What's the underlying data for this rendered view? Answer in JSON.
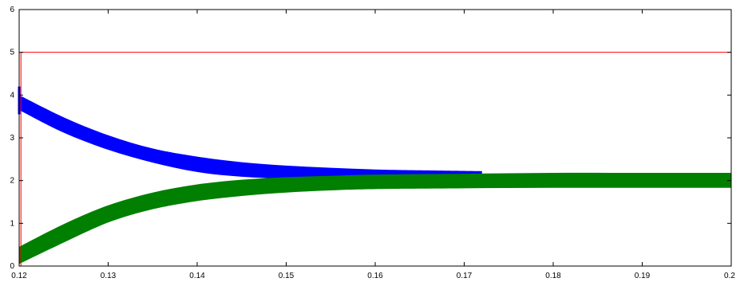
{
  "chart_data": {
    "type": "line",
    "title": "",
    "xlabel": "",
    "ylabel": "",
    "xlim": [
      0.12,
      0.2
    ],
    "ylim": [
      0,
      6
    ],
    "grid": false,
    "x_ticks": [
      0.12,
      0.13,
      0.14,
      0.15,
      0.16,
      0.17,
      0.18,
      0.19,
      0.2
    ],
    "x_tick_labels": [
      "0.12",
      "0.13",
      "0.14",
      "0.15",
      "0.16",
      "0.17",
      "0.18",
      "0.19",
      "0.2"
    ],
    "y_ticks": [
      0,
      1,
      2,
      3,
      4,
      5,
      6
    ],
    "y_tick_labels": [
      "0",
      "1",
      "2",
      "3",
      "4",
      "5",
      "6"
    ],
    "series": [
      {
        "color": "#ff0000",
        "style": "line",
        "x": [
          0.12,
          0.1202,
          0.1202,
          0.2
        ],
        "y": [
          0,
          0,
          5,
          5
        ]
      },
      {
        "color": "#0000ff",
        "style": "band",
        "x": [
          0.12,
          0.125,
          0.13,
          0.135,
          0.14,
          0.145,
          0.15,
          0.155,
          0.16,
          0.165,
          0.172
        ],
        "y_upper": [
          4.0,
          3.48,
          3.06,
          2.75,
          2.56,
          2.43,
          2.35,
          2.3,
          2.26,
          2.24,
          2.22
        ],
        "y_lower": [
          3.65,
          3.12,
          2.72,
          2.42,
          2.2,
          2.09,
          2.05,
          2.05,
          2.07,
          2.1,
          2.15
        ]
      },
      {
        "color": "#007f00",
        "style": "band",
        "x": [
          0.12,
          0.125,
          0.13,
          0.135,
          0.14,
          0.145,
          0.15,
          0.155,
          0.16,
          0.17,
          0.18,
          0.19,
          0.2
        ],
        "y_upper": [
          0.45,
          0.98,
          1.42,
          1.72,
          1.91,
          2.02,
          2.08,
          2.11,
          2.14,
          2.16,
          2.18,
          2.18,
          2.18
        ],
        "y_lower": [
          0.05,
          0.55,
          1.02,
          1.33,
          1.52,
          1.64,
          1.72,
          1.77,
          1.8,
          1.82,
          1.83,
          1.83,
          1.83
        ]
      }
    ],
    "annotations": [
      {
        "color": "#0000ff",
        "x": 0.12,
        "y_range": [
          3.55,
          4.2
        ]
      }
    ]
  }
}
